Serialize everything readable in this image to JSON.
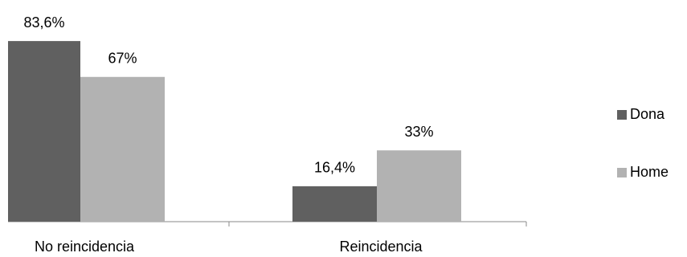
{
  "chart_data": {
    "type": "bar",
    "categories": [
      "No reincidencia",
      "Reincidencia"
    ],
    "series": [
      {
        "name": "Dona",
        "color": "#606060",
        "values": [
          83.6,
          16.4
        ],
        "value_labels": [
          "83,6%",
          "16,4%"
        ]
      },
      {
        "name": "Home",
        "color": "#b2b2b2",
        "values": [
          67,
          33
        ],
        "value_labels": [
          "67%",
          "33%"
        ]
      }
    ],
    "legend": "right"
  }
}
